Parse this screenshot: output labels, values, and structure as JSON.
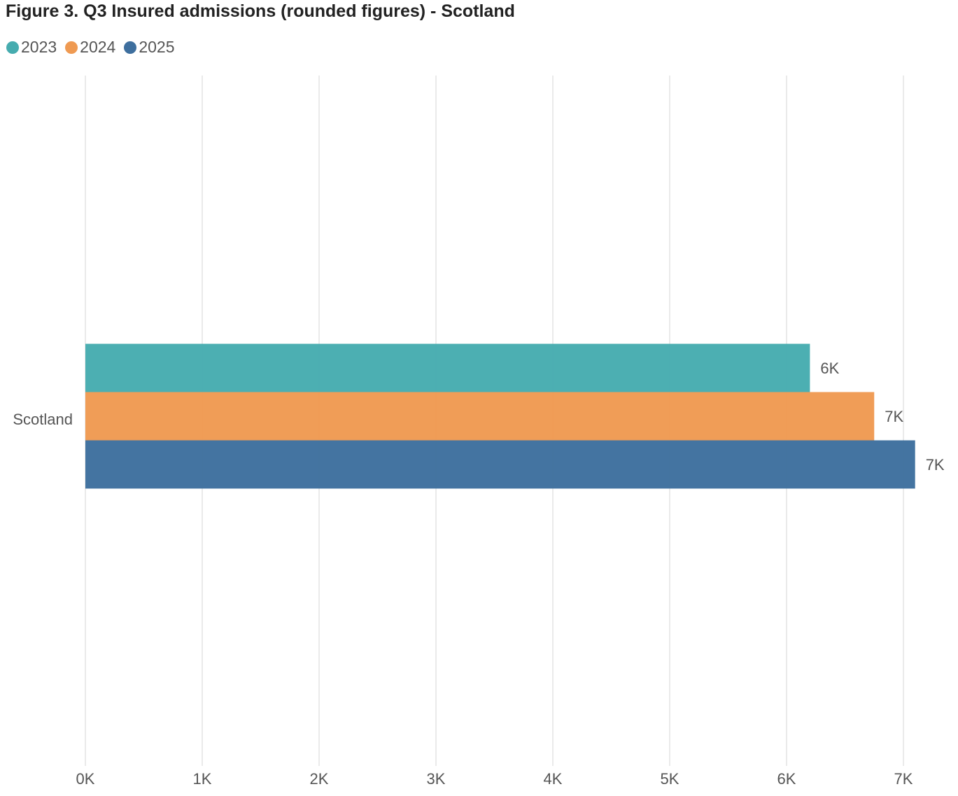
{
  "chart_data": {
    "type": "bar",
    "orientation": "horizontal",
    "title": "Figure 3. Q3 Insured admissions (rounded figures) - Scotland",
    "categories": [
      "Scotland"
    ],
    "series": [
      {
        "name": "2023",
        "color": "#46acaf",
        "values": [
          6200
        ],
        "labels": [
          "6K"
        ]
      },
      {
        "name": "2024",
        "color": "#ef9a52",
        "values": [
          6750
        ],
        "labels": [
          "7K"
        ]
      },
      {
        "name": "2025",
        "color": "#3e6f9e",
        "values": [
          7100
        ],
        "labels": [
          "7K"
        ]
      }
    ],
    "xlim": [
      0,
      7000
    ],
    "xticks": [
      0,
      1000,
      2000,
      3000,
      4000,
      5000,
      6000,
      7000
    ],
    "xtick_labels": [
      "0K",
      "1K",
      "2K",
      "3K",
      "4K",
      "5K",
      "6K",
      "7K"
    ],
    "xlabel": "",
    "ylabel": "",
    "grid": true,
    "legend_position": "top-left"
  }
}
